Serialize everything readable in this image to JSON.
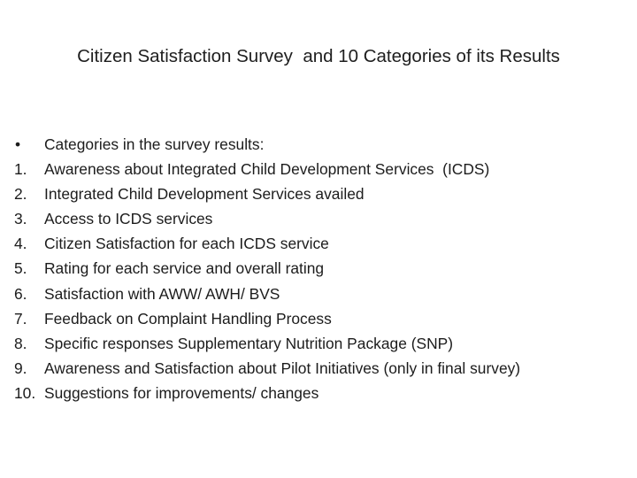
{
  "slide": {
    "title": "Citizen Satisfaction Survey  and 10 Categories of its Results",
    "intro": {
      "marker": "•",
      "text": "Categories in the survey results:"
    },
    "items": [
      {
        "number": "1.",
        "text": "Awareness about Integrated Child Development Services  (ICDS)"
      },
      {
        "number": "2.",
        "text": "Integrated Child Development Services availed"
      },
      {
        "number": "3.",
        "text": "Access to ICDS services"
      },
      {
        "number": "4.",
        "text": "Citizen Satisfaction for each ICDS service"
      },
      {
        "number": "5.",
        "text": "Rating for each service and overall rating"
      },
      {
        "number": "6.",
        "text": "Satisfaction with AWW/ AWH/ BVS"
      },
      {
        "number": "7.",
        "text": "Feedback on Complaint Handling Process"
      },
      {
        "number": "8.",
        "text": "Specific responses Supplementary Nutrition Package (SNP)"
      },
      {
        "number": "9.",
        "text": "Awareness and Satisfaction about Pilot Initiatives (only in final survey)"
      },
      {
        "number": "10.",
        "text": "Suggestions for improvements/ changes"
      }
    ]
  }
}
